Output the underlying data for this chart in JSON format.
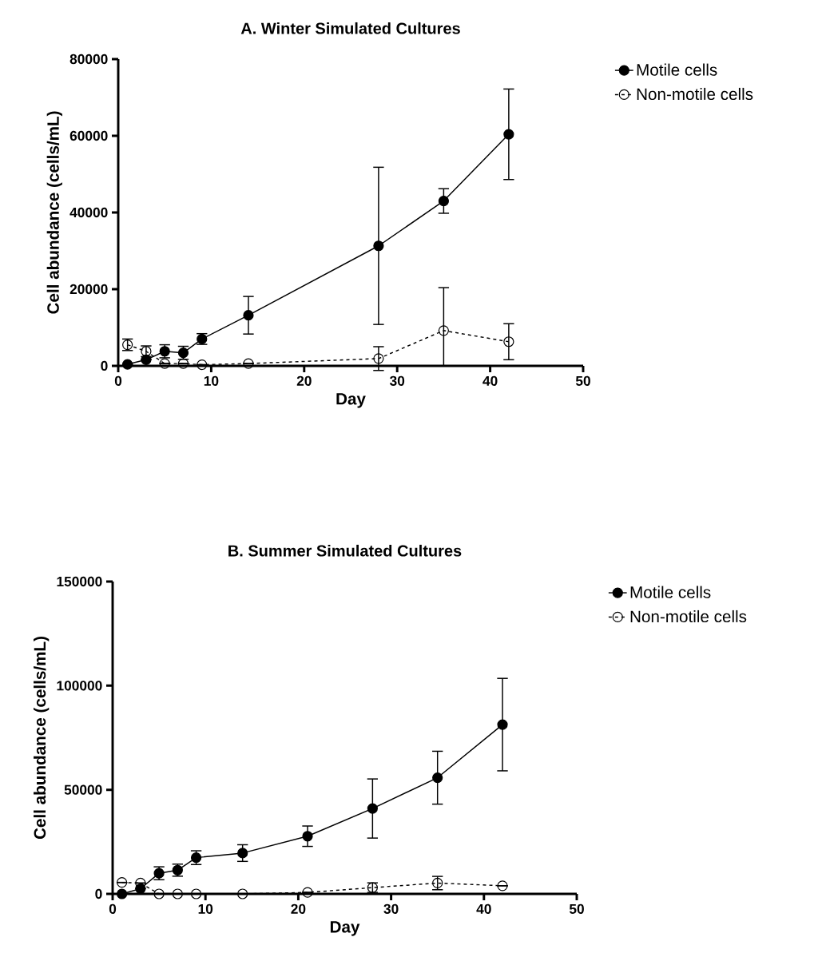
{
  "chart_data": [
    {
      "type": "line",
      "title": "A. Winter Simulated Cultures",
      "xlabel": "Day",
      "ylabel": "Cell abundance (cells/mL)",
      "xlim": [
        0,
        50
      ],
      "xticks": [
        0,
        10,
        20,
        30,
        40,
        50
      ],
      "ylim": [
        0,
        80000
      ],
      "yticks": [
        0,
        20000,
        40000,
        60000,
        80000
      ],
      "legend": "top right",
      "grid": false,
      "series": [
        {
          "name": "Motile cells",
          "color": "#000000",
          "marker": "circle",
          "line_style": "solid",
          "x": [
            1,
            3,
            5,
            7,
            9,
            14,
            28,
            35,
            42
          ],
          "values": [
            400,
            1600,
            3800,
            3400,
            7000,
            13200,
            31300,
            43000,
            60400
          ],
          "errors": [
            null,
            null,
            1700,
            1700,
            1400,
            4900,
            20500,
            3200,
            11800
          ]
        },
        {
          "name": "Non-motile cells",
          "color": "#000000",
          "marker": "circle",
          "line_style": "dashed",
          "x": [
            1,
            3,
            5,
            7,
            9,
            14,
            28,
            35,
            42
          ],
          "values": [
            5500,
            3800,
            600,
            600,
            300,
            600,
            1900,
            9200,
            6300
          ],
          "errors": [
            1500,
            1400,
            null,
            null,
            null,
            null,
            3100,
            [
              0,
              20400
            ],
            4700
          ]
        }
      ]
    },
    {
      "type": "line",
      "title": "B. Summer Simulated Cultures",
      "xlabel": "Day",
      "ylabel": "Cell abundance (cells/mL)",
      "xlim": [
        0,
        50
      ],
      "xticks": [
        0,
        10,
        20,
        30,
        40,
        50
      ],
      "ylim": [
        0,
        150000
      ],
      "yticks": [
        0,
        50000,
        100000,
        150000
      ],
      "legend": "top right",
      "grid": false,
      "series": [
        {
          "name": "Motile cells",
          "color": "#000000",
          "marker": "circle",
          "line_style": "solid",
          "x": [
            1,
            3,
            5,
            7,
            9,
            14,
            21,
            28,
            35,
            42
          ],
          "values": [
            0,
            2500,
            9900,
            11400,
            17400,
            19600,
            27700,
            41000,
            55800,
            81300
          ],
          "errors": [
            null,
            null,
            3100,
            2900,
            3300,
            4000,
            4900,
            14200,
            12700,
            22200
          ]
        },
        {
          "name": "Non-motile cells",
          "color": "#000000",
          "marker": "circle",
          "line_style": "dashed",
          "x": [
            1,
            3,
            5,
            7,
            9,
            14,
            21,
            28,
            35,
            42
          ],
          "values": [
            5500,
            5200,
            0,
            0,
            0,
            0,
            700,
            3000,
            5200,
            3900
          ],
          "errors": [
            null,
            null,
            null,
            null,
            null,
            null,
            null,
            2300,
            3200,
            null
          ]
        }
      ]
    }
  ]
}
